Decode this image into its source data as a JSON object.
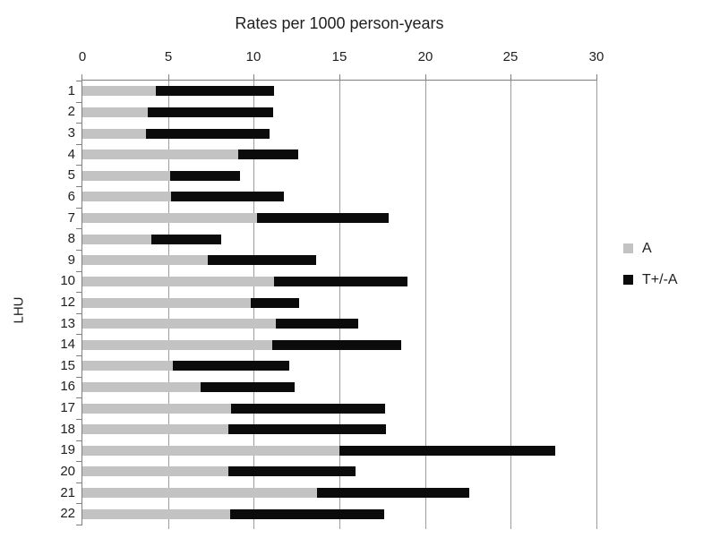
{
  "chart_data": {
    "type": "bar",
    "orientation": "horizontal",
    "stacked": true,
    "title": "Rates per 1000 person-years",
    "ylabel": "LHU",
    "xlim": [
      0,
      30
    ],
    "xticks": [
      0,
      5,
      10,
      15,
      20,
      25,
      30
    ],
    "grid": true,
    "legend_position": "right",
    "categories": [
      "1",
      "2",
      "3",
      "4",
      "5",
      "6",
      "7",
      "8",
      "9",
      "10",
      "12",
      "13",
      "14",
      "15",
      "16",
      "17",
      "18",
      "19",
      "20",
      "21",
      "22"
    ],
    "series": [
      {
        "name": "A",
        "color": "#c3c3c3",
        "values": [
          4.3,
          3.8,
          3.7,
          9.1,
          5.1,
          5.2,
          10.2,
          4.0,
          7.3,
          11.2,
          9.8,
          11.3,
          11.1,
          5.3,
          6.9,
          8.7,
          8.5,
          15.0,
          8.5,
          13.7,
          8.6
        ]
      },
      {
        "name": "T+/-A",
        "color": "#0b0b0b",
        "values": [
          6.9,
          7.3,
          7.2,
          3.5,
          4.1,
          6.6,
          7.7,
          4.1,
          6.3,
          7.8,
          2.8,
          4.8,
          7.5,
          6.8,
          5.5,
          9.0,
          9.2,
          12.6,
          7.4,
          8.9,
          9.0
        ]
      }
    ],
    "stacked_totals": [
      11.2,
      11.1,
      10.9,
      12.6,
      9.2,
      11.8,
      17.9,
      8.1,
      13.6,
      19.0,
      12.6,
      16.1,
      18.6,
      12.1,
      12.4,
      17.7,
      17.7,
      27.6,
      15.9,
      22.6,
      17.6
    ]
  },
  "colors": {
    "background": "#ffffff",
    "axis": "#7f7f7f",
    "gridline": "#9c9c9c",
    "text": "#1f1f1f",
    "series_a": "#c3c3c3",
    "series_t": "#0b0b0b"
  }
}
